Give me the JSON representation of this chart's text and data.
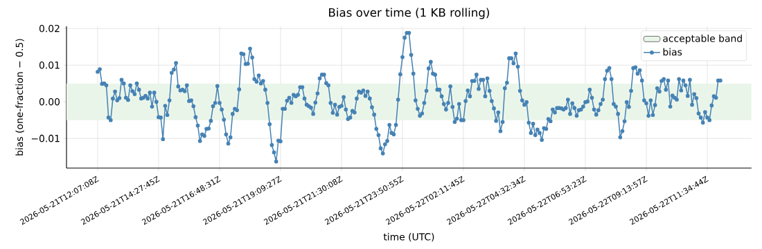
{
  "chart_data": {
    "type": "line",
    "title": "Bias over time (1 KB rolling)",
    "xlabel": "time (UTC)",
    "ylabel": "bias (one-fraction − 0.5)",
    "ylim": [
      -0.0181,
      0.0206
    ],
    "categories": [
      "2026-05-21T12:07:08Z",
      null,
      null,
      null,
      null,
      null,
      null,
      null,
      null,
      null,
      null,
      null,
      null,
      null,
      null,
      null,
      null,
      null,
      null,
      null,
      null,
      null,
      null,
      null,
      null,
      null,
      null,
      null,
      "2026-05-21T14:27:45Z",
      null,
      null,
      null,
      null,
      null,
      null,
      null,
      null,
      null,
      null,
      null,
      null,
      null,
      null,
      null,
      null,
      null,
      null,
      null,
      null,
      null,
      null,
      null,
      null,
      null,
      null,
      null,
      "2026-05-21T16:48:31Z",
      null,
      null,
      null,
      null,
      null,
      null,
      null,
      null,
      null,
      null,
      null,
      null,
      null,
      null,
      null,
      null,
      null,
      null,
      null,
      null,
      null,
      null,
      null,
      null,
      null,
      null,
      null,
      "2026-05-21T19:09:27Z",
      null,
      null,
      null,
      null,
      null,
      null,
      null,
      null,
      null,
      null,
      null,
      null,
      null,
      null,
      null,
      null,
      null,
      null,
      null,
      null,
      null,
      null,
      null,
      null,
      null,
      null,
      null,
      "2026-05-21T21:30:08Z",
      null,
      null,
      null,
      null,
      null,
      null,
      null,
      null,
      null,
      null,
      null,
      null,
      null,
      null,
      null,
      null,
      null,
      null,
      null,
      null,
      null,
      null,
      null,
      null,
      null,
      null,
      null,
      "2026-05-21T23:50:55Z",
      null,
      null,
      null,
      null,
      null,
      null,
      null,
      null,
      null,
      null,
      null,
      null,
      null,
      null,
      null,
      null,
      null,
      null,
      null,
      null,
      null,
      null,
      null,
      null,
      null,
      null,
      null,
      "2026-05-22T02:11:45Z",
      null,
      null,
      null,
      null,
      null,
      null,
      null,
      null,
      null,
      null,
      null,
      null,
      null,
      null,
      null,
      null,
      null,
      null,
      null,
      null,
      null,
      null,
      null,
      null,
      null,
      null,
      null,
      "2026-05-22T04:32:34Z",
      null,
      null,
      null,
      null,
      null,
      null,
      null,
      null,
      null,
      null,
      null,
      null,
      null,
      null,
      null,
      null,
      null,
      null,
      null,
      null,
      null,
      null,
      null,
      null,
      null,
      null,
      null,
      "2026-05-22T06:53:23Z",
      null,
      null,
      null,
      null,
      null,
      null,
      null,
      null,
      null,
      null,
      null,
      null,
      null,
      null,
      null,
      null,
      null,
      null,
      null,
      null,
      null,
      null,
      null,
      null,
      null,
      null,
      null,
      "2026-05-22T09:13:57Z",
      null,
      null,
      null,
      null,
      null,
      null,
      null,
      null,
      null,
      null,
      null,
      null,
      null,
      null,
      null,
      null,
      null,
      null,
      null,
      null,
      null,
      null,
      null,
      null,
      null,
      null,
      null,
      "2026-05-22T11:34:44Z",
      null,
      null,
      null,
      null,
      null,
      null
    ],
    "yticks": [
      {
        "value": -0.01,
        "label": "−0.01"
      },
      {
        "value": 0,
        "label": "0.00"
      },
      {
        "value": 0.01,
        "label": "0.01"
      },
      {
        "value": 0.02,
        "label": "0.02"
      }
    ],
    "grid": true,
    "legend": "top right",
    "marker": "circle",
    "line_style": "solid",
    "bands": [
      {
        "axis": "y",
        "from": -0.005,
        "to": 0.005,
        "label": "acceptable band",
        "color": "#eaf5ea"
      }
    ],
    "series": [
      {
        "name": "bias",
        "color": "#4682b4",
        "values": [
          0.0082,
          0.0089,
          0.0049,
          0.005,
          0.0045,
          -0.0043,
          -0.005,
          0.0009,
          0.0028,
          0.0004,
          0.001,
          0.006,
          0.005,
          0.0011,
          0.0005,
          0.0045,
          0.0029,
          0.0021,
          0.005,
          0.0033,
          0.0009,
          0.0011,
          0.0016,
          0.0009,
          0.0025,
          -0.0013,
          0.0025,
          0.0,
          -0.0042,
          -0.0043,
          -0.0102,
          -0.0011,
          -0.0036,
          0.0004,
          0.0079,
          0.0088,
          0.0106,
          0.0042,
          0.0031,
          0.0033,
          0.0029,
          0.0045,
          0.0002,
          0.0004,
          -0.0012,
          -0.0042,
          -0.0065,
          -0.0107,
          -0.0089,
          -0.0093,
          -0.0074,
          -0.0073,
          -0.0052,
          -0.0012,
          -0.0003,
          0.0043,
          -0.0003,
          -0.0021,
          -0.0049,
          -0.0089,
          -0.0114,
          -0.0097,
          -0.0033,
          -0.0019,
          -0.0023,
          0.0034,
          0.0132,
          0.013,
          0.0103,
          0.0104,
          0.0145,
          0.0121,
          0.0062,
          0.0055,
          0.0072,
          0.005,
          0.0057,
          0.0033,
          -0.0003,
          -0.0061,
          -0.0118,
          -0.0138,
          -0.0163,
          -0.0106,
          -0.0108,
          -0.0019,
          -0.0019,
          0.0003,
          0.0011,
          -0.0003,
          0.0019,
          0.0015,
          0.0019,
          0.004,
          0.004,
          0.0009,
          -0.0008,
          -0.0012,
          -0.0016,
          -0.0033,
          -0.0002,
          0.0023,
          0.0064,
          0.0074,
          0.0074,
          0.0051,
          0.0045,
          -0.0003,
          -0.003,
          -0.0008,
          -0.0035,
          -0.0014,
          -0.0011,
          0.0013,
          -0.0021,
          -0.0047,
          -0.0043,
          -0.0025,
          -0.0029,
          0.0009,
          0.0028,
          0.0025,
          0.0031,
          0.0016,
          0.0028,
          0.0009,
          -0.0015,
          -0.0035,
          -0.0074,
          -0.0091,
          -0.0127,
          -0.0141,
          -0.0116,
          -0.0107,
          -0.0063,
          -0.0085,
          -0.0089,
          -0.0063,
          0.0006,
          0.0075,
          0.0122,
          0.0175,
          0.0188,
          0.0188,
          0.0128,
          0.0077,
          0.0004,
          -0.0019,
          -0.0038,
          -0.0032,
          -0.0003,
          0.003,
          0.0091,
          0.0109,
          0.0077,
          0.0074,
          0.0033,
          0.0033,
          0.0015,
          -0.0006,
          -0.0021,
          -0.0003,
          0.0042,
          -0.0014,
          -0.0055,
          -0.0046,
          -0.0006,
          -0.005,
          -0.005,
          0.0002,
          0.0031,
          0.0015,
          0.0057,
          0.0057,
          0.0074,
          0.0035,
          0.006,
          0.006,
          0.0015,
          0.0064,
          0.003,
          0.0002,
          -0.0018,
          -0.0052,
          -0.0029,
          -0.008,
          -0.0055,
          0.0037,
          0.0052,
          0.0119,
          0.0119,
          0.0105,
          0.0132,
          0.0096,
          0.003,
          0.0004,
          -0.0008,
          -0.0001,
          -0.0057,
          -0.0085,
          -0.006,
          -0.0091,
          -0.0076,
          -0.0085,
          -0.0104,
          -0.0072,
          -0.0074,
          -0.0047,
          -0.0053,
          -0.0021,
          -0.0029,
          -0.0017,
          -0.0017,
          -0.0018,
          -0.0021,
          -0.0017,
          0.0006,
          -0.0033,
          -0.0004,
          -0.0017,
          -0.0038,
          -0.0023,
          -0.0021,
          -0.0013,
          -0.0001,
          0.0001,
          0.0033,
          0.0011,
          -0.0021,
          -0.0035,
          -0.0023,
          -0.0006,
          0.0006,
          0.0062,
          0.0085,
          0.0092,
          0.0062,
          -0.0006,
          -0.0013,
          -0.0033,
          -0.0097,
          -0.008,
          -0.0053,
          -0.0001,
          -0.0014,
          0.003,
          0.0092,
          0.0094,
          0.0077,
          0.0086,
          0.0058,
          0.0004,
          -0.0004,
          -0.0038,
          0.0004,
          -0.0036,
          -0.0009,
          0.0037,
          0.0028,
          0.0057,
          0.0062,
          0.0033,
          0.0058,
          -0.0013,
          0.0017,
          0.0011,
          0.0006,
          0.0062,
          0.0031,
          0.0058,
          0.0045,
          0.0016,
          0.006,
          -0.0008,
          0.0021,
          0.001,
          -0.0032,
          -0.0043,
          -0.0057,
          -0.0028,
          -0.0043,
          -0.005,
          -0.001,
          0.0015,
          0.0011,
          0.0058,
          0.0058
        ]
      }
    ]
  }
}
